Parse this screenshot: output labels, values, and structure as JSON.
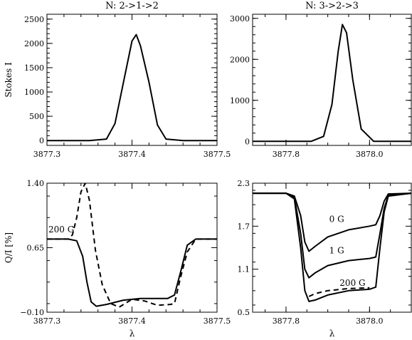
{
  "chart_data": [
    {
      "type": "line",
      "title": "N: 2->1->2",
      "xlabel": "",
      "ylabel": "Stokes I",
      "xlim": [
        3877.3,
        3877.5
      ],
      "ylim": [
        -100,
        2600
      ],
      "xticks": [
        "3877.3",
        "3877.4",
        "3877.5"
      ],
      "yticks": [
        "0",
        "500",
        "1000",
        "1500",
        "2000",
        "2500"
      ],
      "series": [
        {
          "style": "solid",
          "x": [
            3877.3,
            3877.35,
            3877.37,
            3877.38,
            3877.39,
            3877.4,
            3877.405,
            3877.41,
            3877.42,
            3877.43,
            3877.44,
            3877.46,
            3877.5
          ],
          "y": [
            0,
            0,
            30,
            350,
            1200,
            2050,
            2180,
            1950,
            1200,
            320,
            30,
            0,
            0
          ]
        }
      ]
    },
    {
      "type": "line",
      "title": "N: 3->2->3",
      "xlabel": "",
      "ylabel": "",
      "xlim": [
        3877.72,
        3878.1
      ],
      "ylim": [
        -100,
        3100
      ],
      "xticks": [
        "3877.8",
        "3878.0"
      ],
      "yticks": [
        "0",
        "1000",
        "2000",
        "3000"
      ],
      "series": [
        {
          "style": "solid",
          "x": [
            3877.72,
            3877.86,
            3877.89,
            3877.91,
            3877.925,
            3877.935,
            3877.945,
            3877.96,
            3877.98,
            3878.01,
            3878.1
          ],
          "y": [
            0,
            0,
            120,
            900,
            2200,
            2850,
            2650,
            1500,
            300,
            0,
            0
          ]
        }
      ]
    },
    {
      "type": "line",
      "title": "",
      "xlabel": "λ",
      "ylabel": "Q/I [%]",
      "xlim": [
        3877.3,
        3877.5
      ],
      "ylim": [
        -0.1,
        1.4
      ],
      "xticks": [
        "3877.3",
        "3877.4",
        "3877.5"
      ],
      "yticks": [
        "−0.10",
        "0.65",
        "1.40"
      ],
      "series": [
        {
          "name": "200 G",
          "style": "solid",
          "x": [
            3877.3,
            3877.325,
            3877.335,
            3877.342,
            3877.347,
            3877.352,
            3877.358,
            3877.37,
            3877.39,
            3877.41,
            3877.43,
            3877.442,
            3877.45,
            3877.458,
            3877.465,
            3877.475,
            3877.5
          ],
          "y": [
            0.75,
            0.75,
            0.73,
            0.55,
            0.25,
            0.02,
            -0.03,
            -0.01,
            0.04,
            0.06,
            0.06,
            0.06,
            0.1,
            0.4,
            0.68,
            0.75,
            0.75
          ]
        },
        {
          "style": "dashed",
          "x": [
            3877.3,
            3877.325,
            3877.33,
            3877.335,
            3877.34,
            3877.345,
            3877.35,
            3877.357,
            3877.365,
            3877.375,
            3877.385,
            3877.4,
            3877.415,
            3877.43,
            3877.445,
            3877.45,
            3877.457,
            3877.465,
            3877.475,
            3877.5
          ],
          "y": [
            0.75,
            0.75,
            0.8,
            1.0,
            1.3,
            1.4,
            1.2,
            0.62,
            0.22,
            0.0,
            -0.04,
            0.05,
            0.03,
            -0.02,
            -0.01,
            0.0,
            0.3,
            0.6,
            0.75,
            0.75
          ]
        }
      ],
      "annotations": [
        "200 G"
      ]
    },
    {
      "type": "line",
      "title": "",
      "xlabel": "λ",
      "ylabel": "",
      "xlim": [
        3877.72,
        3878.1
      ],
      "ylim": [
        0.5,
        2.3
      ],
      "xticks": [
        "3877.8",
        "3878.0"
      ],
      "yticks": [
        "0.5",
        "1.1",
        "1.7",
        "2.3"
      ],
      "series": [
        {
          "name": "0 G",
          "style": "solid",
          "x": [
            3877.72,
            3877.8,
            3877.82,
            3877.835,
            3877.845,
            3877.855,
            3877.87,
            3877.9,
            3877.95,
            3878.0,
            3878.015,
            3878.025,
            3878.035,
            3878.045,
            3878.1
          ],
          "y": [
            2.16,
            2.16,
            2.12,
            1.85,
            1.48,
            1.35,
            1.42,
            1.55,
            1.65,
            1.7,
            1.72,
            1.85,
            2.05,
            2.15,
            2.16
          ]
        },
        {
          "name": "1 G",
          "style": "solid",
          "x": [
            3877.72,
            3877.8,
            3877.82,
            3877.835,
            3877.845,
            3877.855,
            3877.87,
            3877.9,
            3877.95,
            3878.0,
            3878.015,
            3878.025,
            3878.035,
            3878.045,
            3878.1
          ],
          "y": [
            2.16,
            2.16,
            2.1,
            1.6,
            1.1,
            0.98,
            1.05,
            1.15,
            1.22,
            1.25,
            1.27,
            1.6,
            1.95,
            2.13,
            2.16
          ]
        },
        {
          "name": "200 G",
          "style": "solid",
          "x": [
            3877.72,
            3877.8,
            3877.82,
            3877.835,
            3877.845,
            3877.855,
            3877.87,
            3877.9,
            3877.95,
            3878.0,
            3878.015,
            3878.025,
            3878.035,
            3878.045,
            3878.1
          ],
          "y": [
            2.16,
            2.16,
            2.08,
            1.4,
            0.8,
            0.65,
            0.67,
            0.74,
            0.8,
            0.82,
            0.85,
            1.4,
            1.9,
            2.12,
            2.16
          ]
        },
        {
          "style": "dashed",
          "x": [
            3877.855,
            3877.87,
            3877.9,
            3877.95,
            3878.0
          ],
          "y": [
            0.72,
            0.76,
            0.8,
            0.83,
            0.84
          ]
        }
      ],
      "annotations": [
        "0 G",
        "1 G",
        "200 G"
      ]
    }
  ]
}
